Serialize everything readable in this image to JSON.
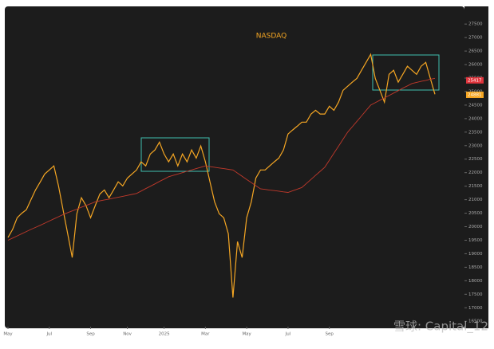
{
  "chart_data": {
    "type": "line",
    "title": "NASDAQ",
    "categories": [
      "May",
      null,
      null,
      null,
      null,
      null,
      null,
      null,
      null,
      "Jul",
      null,
      null,
      null,
      null,
      null,
      null,
      null,
      null,
      "Sep",
      null,
      null,
      null,
      null,
      null,
      null,
      null,
      "Nov",
      null,
      null,
      null,
      null,
      null,
      null,
      null,
      "2025",
      null,
      null,
      null,
      null,
      null,
      null,
      null,
      null,
      "Mar",
      null,
      null,
      null,
      null,
      null,
      null,
      null,
      null,
      "May",
      null,
      null,
      null,
      null,
      null,
      null,
      null,
      null,
      "Jul",
      null,
      null,
      null,
      null,
      null,
      null,
      null,
      null,
      "Sep",
      null,
      null,
      null,
      null,
      null,
      null,
      null,
      null,
      null,
      null,
      null,
      null,
      null,
      null,
      null,
      null,
      null,
      null,
      null,
      null,
      null,
      null,
      null
    ],
    "series": [
      {
        "name": "NASDAQ",
        "color": "#f5a623",
        "values": [
          19600,
          19900,
          20330,
          20500,
          20630,
          21000,
          21360,
          21650,
          21950,
          22100,
          22250,
          21510,
          20630,
          19740,
          18860,
          20480,
          21070,
          20780,
          20330,
          20780,
          21210,
          21360,
          21070,
          21360,
          21660,
          21510,
          21800,
          21950,
          22100,
          22400,
          22250,
          22690,
          22840,
          23130,
          22690,
          22400,
          22690,
          22250,
          22690,
          22400,
          22840,
          22540,
          22990,
          22400,
          21660,
          20920,
          20480,
          20330,
          19740,
          17380,
          19450,
          18860,
          20330,
          20920,
          21800,
          22100,
          22100,
          22250,
          22400,
          22540,
          22840,
          23430,
          23580,
          23720,
          23870,
          23870,
          24170,
          24310,
          24170,
          24170,
          24460,
          24310,
          24610,
          25050,
          25200,
          25350,
          25490,
          25790,
          26080,
          26380,
          25490,
          25050,
          24610,
          25640,
          25790,
          25350,
          25640,
          25940,
          25790,
          25640,
          25940,
          26080,
          25490,
          24900
        ]
      },
      {
        "name": "MA",
        "color": "#c0392b",
        "values": [
          19500,
          19580,
          19660,
          19740,
          19820,
          19900,
          19975,
          20050,
          20130,
          20210,
          20290,
          20370,
          20450,
          20520,
          20585,
          20650,
          20720,
          20785,
          20850,
          20920,
          20955,
          20990,
          21020,
          21055,
          21090,
          21125,
          21160,
          21195,
          21230,
          21320,
          21410,
          21495,
          21585,
          21675,
          21760,
          21850,
          21900,
          21950,
          22000,
          22050,
          22100,
          22150,
          22200,
          22250,
          22225,
          22200,
          22175,
          22150,
          22125,
          22100,
          21985,
          21865,
          21750,
          21635,
          21515,
          21400,
          21380,
          21355,
          21335,
          21315,
          21290,
          21270,
          21330,
          21390,
          21450,
          21600,
          21750,
          21900,
          22050,
          22200,
          22460,
          22720,
          22980,
          23240,
          23500,
          23700,
          23900,
          24100,
          24300,
          24500,
          24590,
          24680,
          24765,
          24855,
          24945,
          25035,
          25125,
          25210,
          25300,
          25340,
          25380,
          25415,
          25455,
          25490
        ]
      }
    ],
    "price_labels": [
      {
        "value": 25417,
        "color": "#e0343c"
      },
      {
        "value": 24881,
        "color": "#f5a623"
      }
    ],
    "ylim": [
      16300,
      27800
    ],
    "yticks": [
      16500,
      17000,
      17500,
      18000,
      18500,
      19000,
      19500,
      20000,
      20500,
      21000,
      21500,
      22000,
      22500,
      23000,
      23500,
      24000,
      24500,
      25000,
      25500,
      26000,
      26500,
      27000,
      27500
    ],
    "watermark": "雪球: Capital_12"
  }
}
